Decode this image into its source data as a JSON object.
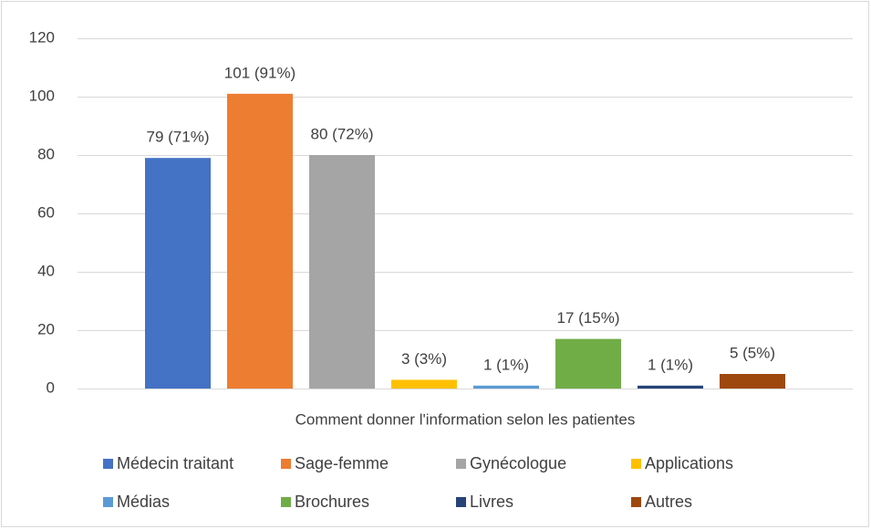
{
  "chart_data": {
    "type": "bar",
    "categories": [
      "Comment donner l'information selon les patientes"
    ],
    "series": [
      {
        "name": "Médecin traitant",
        "color": "#4472c4",
        "values": [
          79
        ],
        "value_labels": [
          "79 (71%)"
        ]
      },
      {
        "name": "Sage-femme",
        "color": "#ed7d31",
        "values": [
          101
        ],
        "value_labels": [
          "101 (91%)"
        ]
      },
      {
        "name": "Gynécologue",
        "color": "#a5a5a5",
        "values": [
          80
        ],
        "value_labels": [
          "80 (72%)"
        ]
      },
      {
        "name": "Applications",
        "color": "#ffc000",
        "values": [
          3
        ],
        "value_labels": [
          "3 (3%)"
        ]
      },
      {
        "name": "Médias",
        "color": "#5b9bd5",
        "values": [
          1
        ],
        "value_labels": [
          "1 (1%)"
        ]
      },
      {
        "name": "Brochures",
        "color": "#70ad47",
        "values": [
          17
        ],
        "value_labels": [
          "17 (15%)"
        ]
      },
      {
        "name": "Livres",
        "color": "#264478",
        "values": [
          1
        ],
        "value_labels": [
          "1 (1%)"
        ]
      },
      {
        "name": "Autres",
        "color": "#9e480e",
        "values": [
          5
        ],
        "value_labels": [
          "5 (5%)"
        ]
      }
    ],
    "ylim": [
      0,
      120
    ],
    "yticks": [
      0,
      20,
      40,
      60,
      80,
      100,
      120
    ],
    "grid": true,
    "legend": "bottom"
  }
}
